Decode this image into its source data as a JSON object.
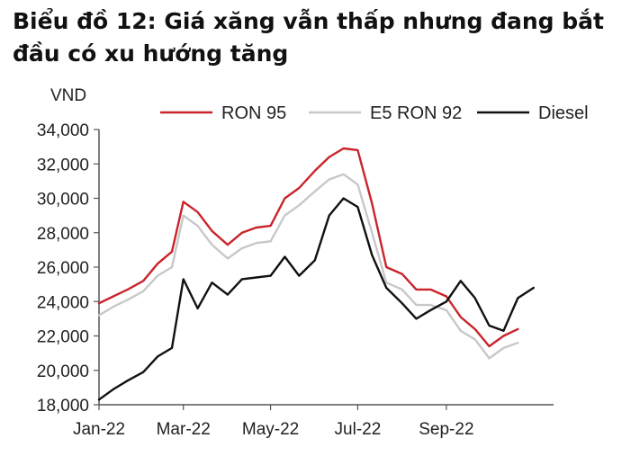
{
  "title": "Biểu đồ 12: Giá xăng vẫn thấp nhưng đang bắt đầu có xu hướng tăng",
  "chart_data": {
    "type": "line",
    "unit_label": "VND",
    "ylim": [
      18000,
      34000
    ],
    "yticks": [
      18000,
      20000,
      22000,
      24000,
      26000,
      28000,
      30000,
      32000,
      34000
    ],
    "ytick_labels": [
      "18,000",
      "20,000",
      "22,000",
      "24,000",
      "26,000",
      "28,000",
      "30,000",
      "32,000",
      "34,000"
    ],
    "xlim": [
      "2022-01-01",
      "2022-11-15"
    ],
    "xticks": [
      "2022-01-01",
      "2022-03-01",
      "2022-05-01",
      "2022-07-01",
      "2022-09-01"
    ],
    "xtick_labels": [
      "Jan-22",
      "Mar-22",
      "May-22",
      "Jul-22",
      "Sep-22"
    ],
    "grid": false,
    "legend_position": "top",
    "series": [
      {
        "name": "RON 95",
        "color": "#c9242b",
        "points": [
          [
            "2022-01-01",
            23900
          ],
          [
            "2022-01-11",
            24300
          ],
          [
            "2022-01-21",
            24700
          ],
          [
            "2022-02-01",
            25200
          ],
          [
            "2022-02-11",
            26200
          ],
          [
            "2022-02-21",
            26900
          ],
          [
            "2022-03-01",
            29800
          ],
          [
            "2022-03-11",
            29200
          ],
          [
            "2022-03-21",
            28100
          ],
          [
            "2022-04-01",
            27300
          ],
          [
            "2022-04-11",
            28000
          ],
          [
            "2022-04-21",
            28300
          ],
          [
            "2022-05-01",
            28400
          ],
          [
            "2022-05-11",
            30000
          ],
          [
            "2022-05-21",
            30600
          ],
          [
            "2022-06-01",
            31600
          ],
          [
            "2022-06-11",
            32400
          ],
          [
            "2022-06-21",
            32900
          ],
          [
            "2022-07-01",
            32800
          ],
          [
            "2022-07-11",
            29700
          ],
          [
            "2022-07-21",
            26000
          ],
          [
            "2022-08-01",
            25600
          ],
          [
            "2022-08-11",
            24700
          ],
          [
            "2022-08-21",
            24700
          ],
          [
            "2022-09-01",
            24300
          ],
          [
            "2022-09-11",
            23100
          ],
          [
            "2022-09-21",
            22400
          ],
          [
            "2022-10-01",
            21400
          ],
          [
            "2022-10-11",
            22000
          ],
          [
            "2022-10-21",
            22400
          ]
        ]
      },
      {
        "name": "E5 RON 92",
        "color": "#c8c8c8",
        "points": [
          [
            "2022-01-01",
            23200
          ],
          [
            "2022-01-11",
            23700
          ],
          [
            "2022-01-21",
            24100
          ],
          [
            "2022-02-01",
            24600
          ],
          [
            "2022-02-11",
            25500
          ],
          [
            "2022-02-21",
            26000
          ],
          [
            "2022-03-01",
            29000
          ],
          [
            "2022-03-11",
            28400
          ],
          [
            "2022-03-21",
            27300
          ],
          [
            "2022-04-01",
            26500
          ],
          [
            "2022-04-11",
            27100
          ],
          [
            "2022-04-21",
            27400
          ],
          [
            "2022-05-01",
            27500
          ],
          [
            "2022-05-11",
            29000
          ],
          [
            "2022-05-21",
            29600
          ],
          [
            "2022-06-01",
            30400
          ],
          [
            "2022-06-11",
            31100
          ],
          [
            "2022-06-21",
            31400
          ],
          [
            "2022-07-01",
            30800
          ],
          [
            "2022-07-11",
            28000
          ],
          [
            "2022-07-21",
            25100
          ],
          [
            "2022-08-01",
            24700
          ],
          [
            "2022-08-11",
            23800
          ],
          [
            "2022-08-21",
            23800
          ],
          [
            "2022-09-01",
            23500
          ],
          [
            "2022-09-11",
            22300
          ],
          [
            "2022-09-21",
            21800
          ],
          [
            "2022-10-01",
            20700
          ],
          [
            "2022-10-11",
            21300
          ],
          [
            "2022-10-21",
            21600
          ]
        ]
      },
      {
        "name": "Diesel",
        "color": "#111111",
        "points": [
          [
            "2022-01-01",
            18300
          ],
          [
            "2022-01-11",
            18900
          ],
          [
            "2022-01-21",
            19400
          ],
          [
            "2022-02-01",
            19900
          ],
          [
            "2022-02-11",
            20800
          ],
          [
            "2022-02-21",
            21300
          ],
          [
            "2022-03-01",
            25300
          ],
          [
            "2022-03-11",
            23600
          ],
          [
            "2022-03-21",
            25100
          ],
          [
            "2022-04-01",
            24400
          ],
          [
            "2022-04-11",
            25300
          ],
          [
            "2022-04-21",
            25400
          ],
          [
            "2022-05-01",
            25500
          ],
          [
            "2022-05-11",
            26600
          ],
          [
            "2022-05-21",
            25500
          ],
          [
            "2022-06-01",
            26400
          ],
          [
            "2022-06-11",
            29000
          ],
          [
            "2022-06-21",
            30000
          ],
          [
            "2022-07-01",
            29500
          ],
          [
            "2022-07-11",
            26700
          ],
          [
            "2022-07-21",
            24800
          ],
          [
            "2022-08-01",
            23900
          ],
          [
            "2022-08-11",
            23000
          ],
          [
            "2022-08-21",
            23500
          ],
          [
            "2022-09-01",
            24000
          ],
          [
            "2022-09-11",
            25200
          ],
          [
            "2022-09-21",
            24200
          ],
          [
            "2022-10-01",
            22600
          ],
          [
            "2022-10-11",
            22300
          ],
          [
            "2022-10-21",
            24200
          ],
          [
            "2022-11-01",
            24800
          ]
        ]
      }
    ]
  }
}
